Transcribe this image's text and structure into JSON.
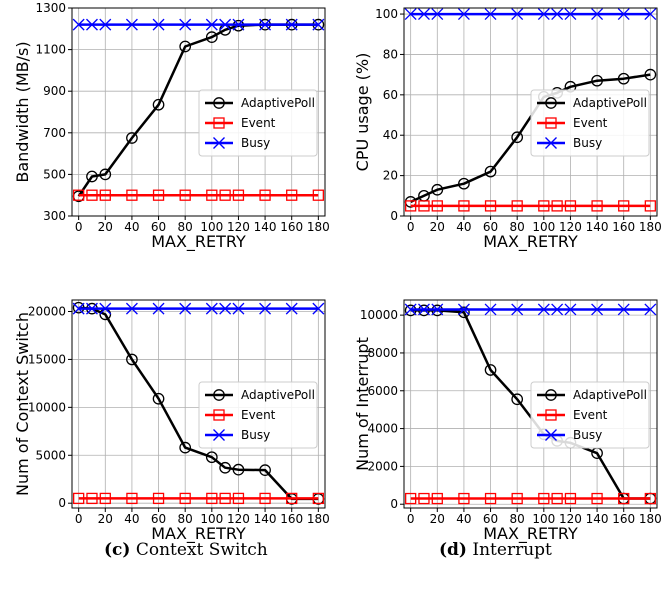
{
  "chart_data": [
    {
      "type": "line",
      "title": "",
      "xlabel": "MAX_RETRY",
      "ylabel": "Bandwidth (MB/s)",
      "xlim": [
        -5,
        185
      ],
      "ylim": [
        300,
        1300
      ],
      "xticks": [
        0,
        20,
        40,
        60,
        80,
        100,
        120,
        140,
        160,
        180
      ],
      "yticks": [
        300,
        500,
        700,
        900,
        1100,
        1300
      ],
      "grid": true,
      "legend": "center-right",
      "x": [
        0,
        10,
        20,
        40,
        60,
        80,
        100,
        110,
        120,
        140,
        160,
        180
      ],
      "series": [
        {
          "name": "AdaptivePoll",
          "color": "#000000",
          "marker": "circle",
          "values": [
            395,
            490,
            500,
            675,
            835,
            1115,
            1160,
            1195,
            1215,
            1220,
            1220,
            1220
          ]
        },
        {
          "name": "Event",
          "color": "#ff0000",
          "marker": "square",
          "values": [
            400,
            400,
            400,
            400,
            400,
            400,
            400,
            400,
            400,
            400,
            400,
            400
          ]
        },
        {
          "name": "Busy",
          "color": "#0000ff",
          "marker": "x",
          "values": [
            1220,
            1220,
            1220,
            1220,
            1220,
            1220,
            1220,
            1220,
            1220,
            1220,
            1220,
            1220
          ]
        }
      ]
    },
    {
      "type": "line",
      "title": "",
      "xlabel": "MAX_RETRY",
      "ylabel": "CPU usage (%)",
      "xlim": [
        -5,
        185
      ],
      "ylim": [
        0,
        103
      ],
      "xticks": [
        0,
        20,
        40,
        60,
        80,
        100,
        120,
        140,
        160,
        180
      ],
      "yticks": [
        0,
        20,
        40,
        60,
        80,
        100
      ],
      "grid": true,
      "legend": "center-right",
      "x": [
        0,
        10,
        20,
        40,
        60,
        80,
        100,
        110,
        120,
        140,
        160,
        180
      ],
      "series": [
        {
          "name": "AdaptivePoll",
          "color": "#000000",
          "marker": "circle",
          "values": [
            7,
            10,
            13,
            16,
            22,
            39,
            59,
            61,
            64,
            67,
            68,
            70
          ]
        },
        {
          "name": "Event",
          "color": "#ff0000",
          "marker": "square",
          "values": [
            5,
            5,
            5,
            5,
            5,
            5,
            5,
            5,
            5,
            5,
            5,
            5
          ]
        },
        {
          "name": "Busy",
          "color": "#0000ff",
          "marker": "x",
          "values": [
            100,
            100,
            100,
            100,
            100,
            100,
            100,
            100,
            100,
            100,
            100,
            100
          ]
        }
      ]
    },
    {
      "type": "line",
      "title": "",
      "xlabel": "MAX_RETRY",
      "ylabel": "Num of Context Switch",
      "xlim": [
        -5,
        185
      ],
      "ylim": [
        -500,
        21200
      ],
      "xticks": [
        0,
        20,
        40,
        60,
        80,
        100,
        120,
        140,
        160,
        180
      ],
      "yticks": [
        0,
        5000,
        10000,
        15000,
        20000
      ],
      "grid": true,
      "legend": "center-right",
      "x": [
        0,
        10,
        20,
        40,
        60,
        80,
        100,
        110,
        120,
        140,
        160,
        180
      ],
      "series": [
        {
          "name": "AdaptivePoll",
          "color": "#000000",
          "marker": "circle",
          "values": [
            20400,
            20300,
            19700,
            15000,
            10900,
            5800,
            4800,
            3700,
            3500,
            3450,
            450,
            450
          ]
        },
        {
          "name": "Event",
          "color": "#ff0000",
          "marker": "square",
          "values": [
            500,
            500,
            500,
            500,
            500,
            500,
            500,
            500,
            500,
            500,
            500,
            500
          ]
        },
        {
          "name": "Busy",
          "color": "#0000ff",
          "marker": "x",
          "values": [
            20300,
            20300,
            20300,
            20300,
            20300,
            20300,
            20300,
            20300,
            20300,
            20300,
            20300,
            20300
          ]
        }
      ]
    },
    {
      "type": "line",
      "title": "",
      "xlabel": "MAX_RETRY",
      "ylabel": "Num of Interrupt",
      "xlim": [
        -5,
        185
      ],
      "ylim": [
        -200,
        10800
      ],
      "xticks": [
        0,
        20,
        40,
        60,
        80,
        100,
        120,
        140,
        160,
        180
      ],
      "yticks": [
        0,
        2000,
        4000,
        6000,
        8000,
        10000
      ],
      "grid": true,
      "legend": "center-right",
      "x": [
        0,
        10,
        20,
        40,
        60,
        80,
        100,
        110,
        120,
        140,
        160,
        180
      ],
      "series": [
        {
          "name": "AdaptivePoll",
          "color": "#000000",
          "marker": "circle",
          "values": [
            10250,
            10250,
            10250,
            10150,
            7100,
            5550,
            3700,
            3350,
            3250,
            2700,
            300,
            300
          ]
        },
        {
          "name": "Event",
          "color": "#ff0000",
          "marker": "square",
          "values": [
            300,
            300,
            300,
            300,
            300,
            300,
            300,
            300,
            300,
            300,
            300,
            300
          ]
        },
        {
          "name": "Busy",
          "color": "#0000ff",
          "marker": "x",
          "values": [
            10300,
            10300,
            10300,
            10300,
            10300,
            10300,
            10300,
            10300,
            10300,
            10300,
            10300,
            10300
          ]
        }
      ]
    }
  ],
  "captions": [
    {
      "letter": "(c)",
      "text": "Context Switch"
    },
    {
      "letter": "(d)",
      "text": "Interrupt"
    }
  ]
}
